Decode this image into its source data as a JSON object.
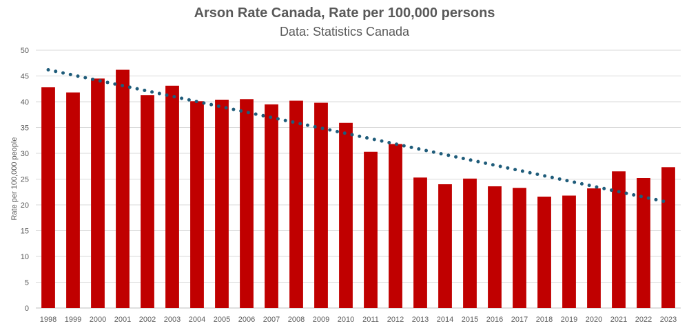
{
  "chart_data": {
    "type": "bar",
    "title": "Arson Rate Canada, Rate per 100,000 persons",
    "subtitle": "Data: Statistics Canada",
    "xlabel": "",
    "ylabel": "Rate per 100,000 people",
    "ylim": [
      0,
      50
    ],
    "yticks": [
      0,
      5,
      10,
      15,
      20,
      25,
      30,
      35,
      40,
      45,
      50
    ],
    "grid": true,
    "categories": [
      "1998",
      "1999",
      "2000",
      "2001",
      "2002",
      "2003",
      "2004",
      "2005",
      "2006",
      "2007",
      "2008",
      "2009",
      "2010",
      "2011",
      "2012",
      "2013",
      "2014",
      "2015",
      "2016",
      "2017",
      "2018",
      "2019",
      "2020",
      "2021",
      "2022",
      "2023"
    ],
    "values": [
      42.8,
      41.8,
      44.5,
      46.2,
      41.3,
      43.1,
      40.1,
      40.4,
      40.5,
      39.5,
      40.2,
      39.8,
      35.9,
      30.3,
      31.8,
      25.3,
      24.0,
      25.1,
      23.6,
      23.3,
      21.6,
      21.8,
      23.2,
      26.5,
      25.2,
      27.3
    ],
    "trendline": {
      "type": "linear",
      "start": 46.2,
      "end": 20.5
    },
    "colors": {
      "bar": "#C00000",
      "trendline": "#1F5C7A",
      "grid": "#D9D9D9",
      "text": "#595959"
    }
  }
}
